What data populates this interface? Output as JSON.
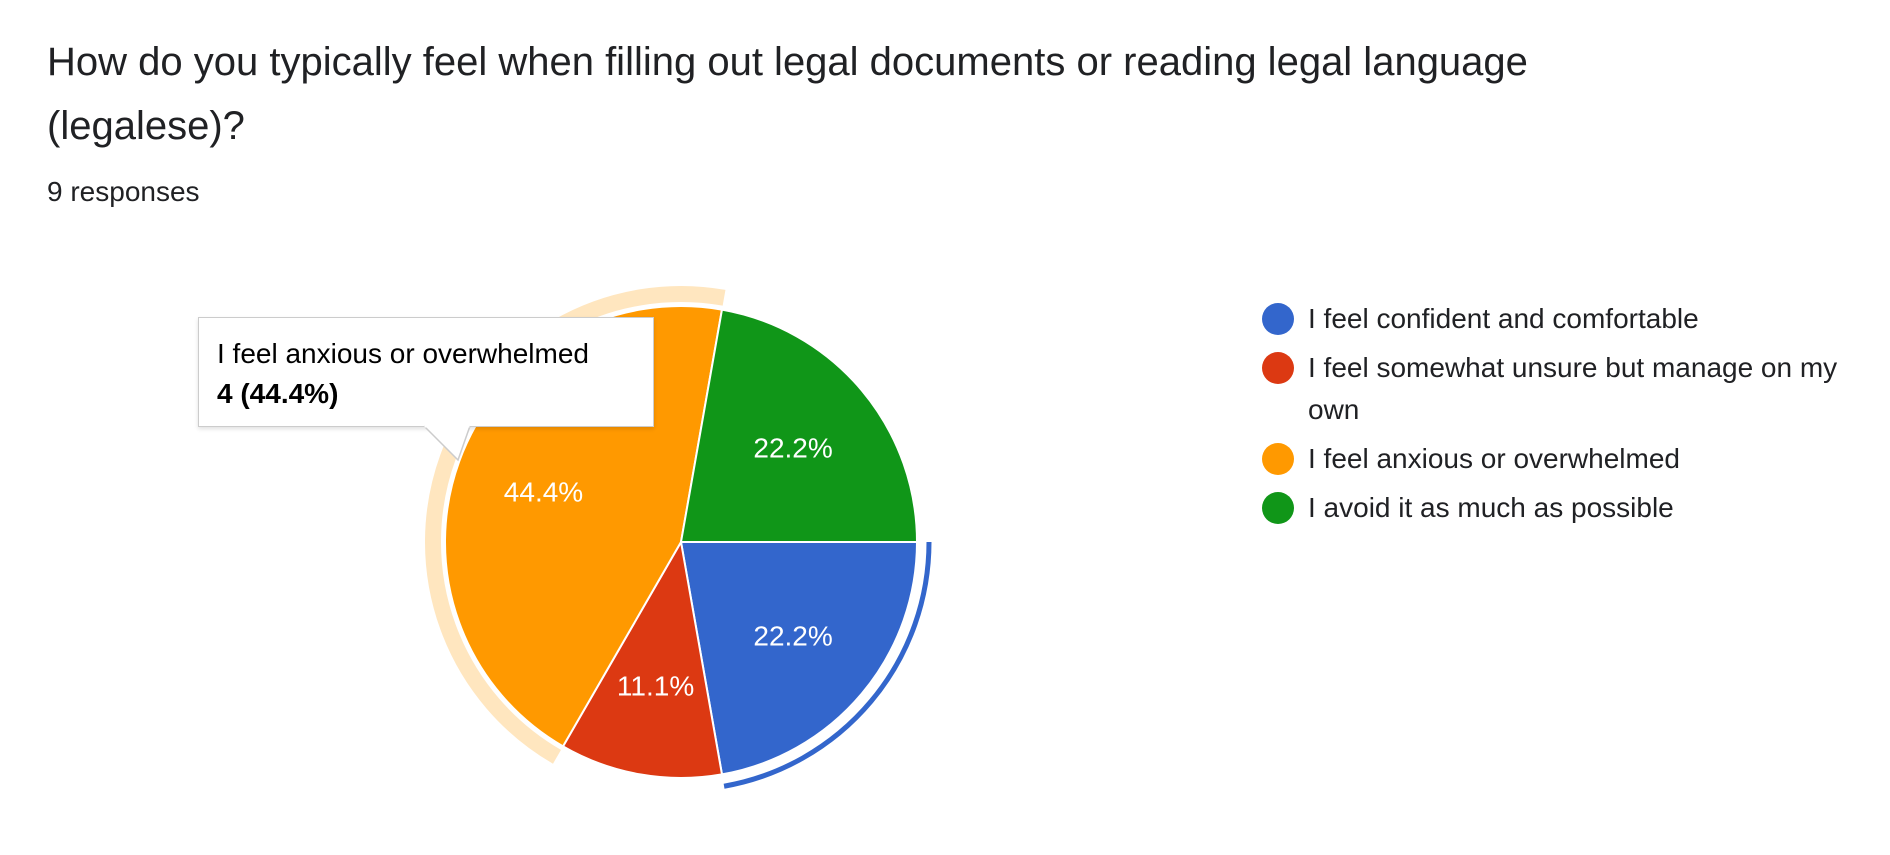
{
  "question": {
    "title": "How do you typically feel when filling out legal documents or reading legal language (legalese)?",
    "responses": "9 responses"
  },
  "tooltip": {
    "label": "I feel anxious or overwhelmed",
    "value": "4 (44.4%)"
  },
  "chart_data": {
    "type": "pie",
    "total": 9,
    "slices": [
      {
        "label": "I feel confident and comfortable",
        "count": 2,
        "percent_label": "22.2%",
        "color": "#3366cc"
      },
      {
        "label": "I feel somewhat unsure but manage on my own",
        "count": 1,
        "percent_label": "11.1%",
        "color": "#dc3912"
      },
      {
        "label": "I feel anxious or overwhelmed",
        "count": 4,
        "percent_label": "44.4%",
        "color": "#ff9900"
      },
      {
        "label": "I avoid it as much as possible",
        "count": 2,
        "percent_label": "22.2%",
        "color": "#109618"
      }
    ],
    "highlighted": [
      "I feel anxious or overwhelmed",
      "I feel confident and comfortable"
    ],
    "legend_position": "right"
  }
}
